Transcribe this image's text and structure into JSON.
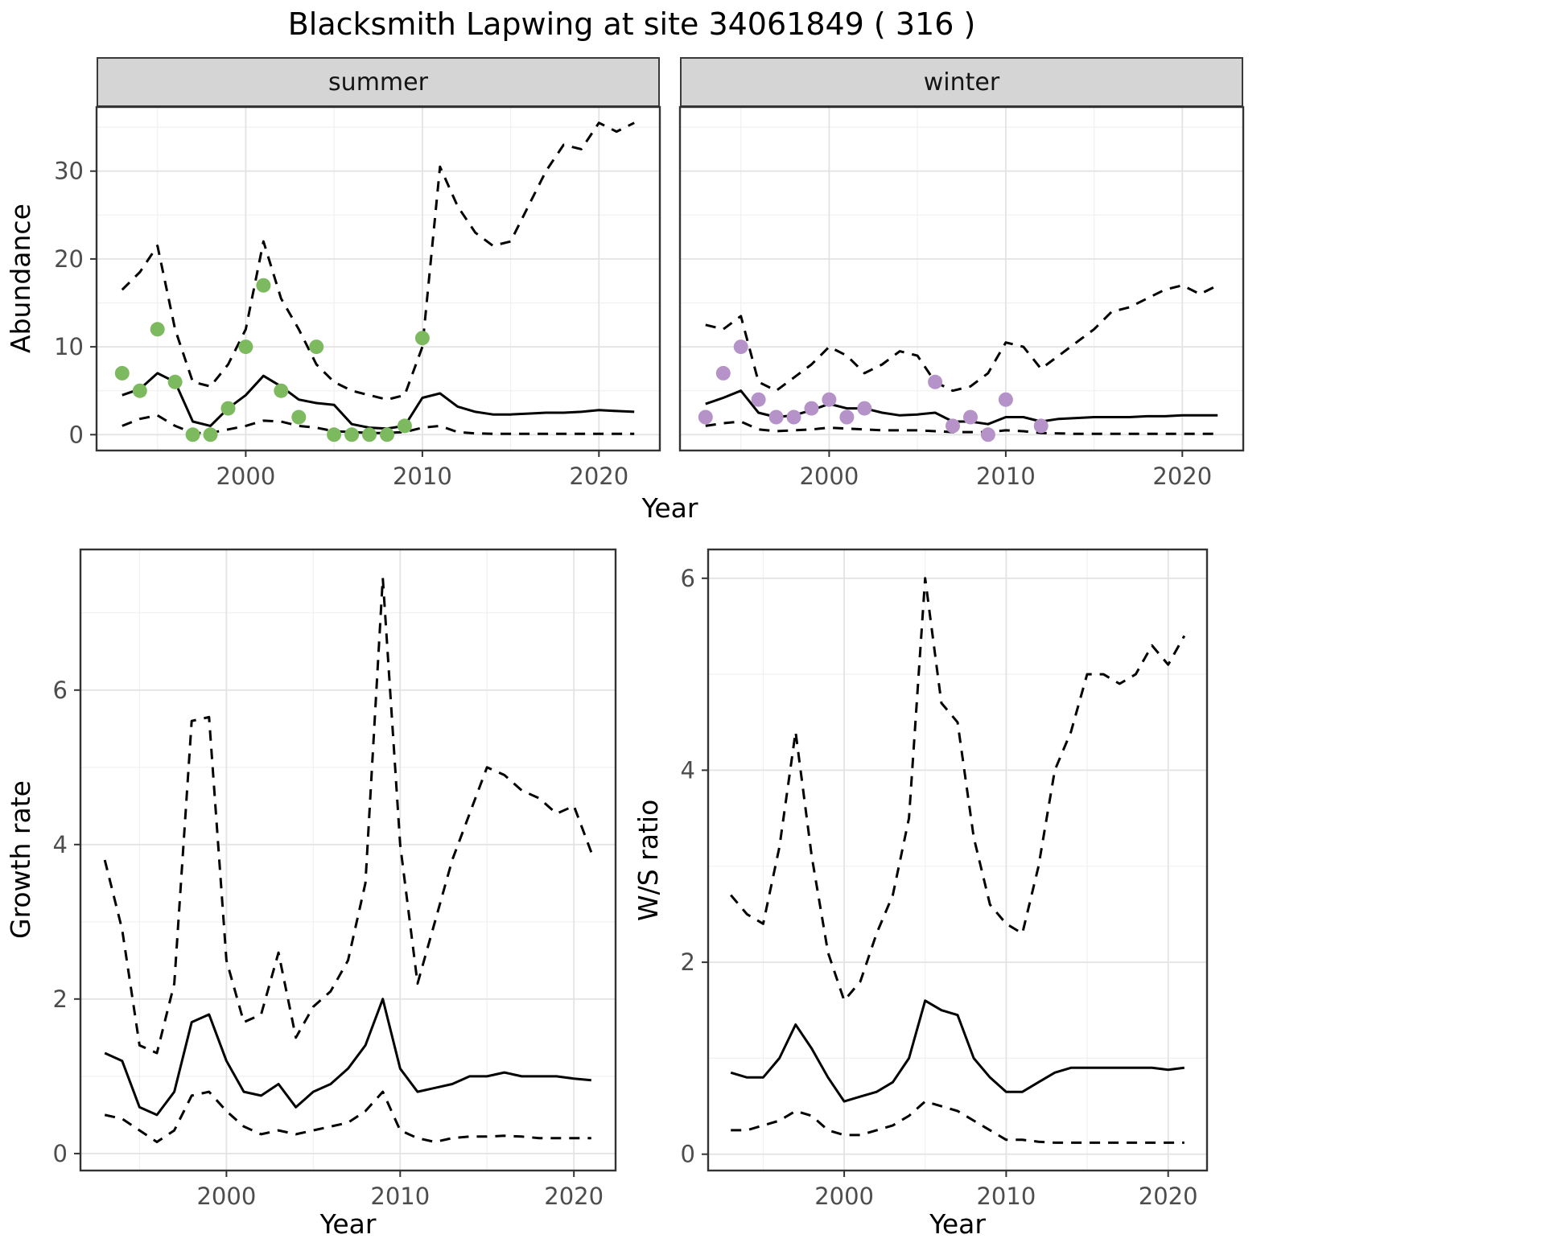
{
  "title": "Blacksmith Lapwing at site 34061849 ( 316 )",
  "axes": {
    "abundance_label": "Abundance",
    "year_label": "Year",
    "growth_label": "Growth rate",
    "ratio_label": "W/S ratio"
  },
  "facets": {
    "summer": "summer",
    "winter": "winter"
  },
  "colors": {
    "summer_points": "#7db95f",
    "winter_points": "#b592c8",
    "line": "#000000",
    "grid_major": "#e3e3e3",
    "grid_minor": "#f0f0f0",
    "strip_bg": "#d5d5d5",
    "panel_border": "#333333",
    "tick_text": "#4d4d4d"
  },
  "chart_data": [
    {
      "id": "abundance-summer",
      "type": "line",
      "facet": "summer",
      "xlabel": "Year",
      "ylabel": "Abundance",
      "xlim": [
        1991.55,
        2023.45
      ],
      "ylim": [
        -1.8,
        37.3
      ],
      "xticks": [
        2000,
        2010,
        2020
      ],
      "yticks": [
        0,
        10,
        20,
        30
      ],
      "xminor": [
        1995,
        2005,
        2015
      ],
      "yminor": [
        5,
        15,
        25,
        35
      ],
      "x": [
        1993,
        1994,
        1995,
        1996,
        1997,
        1998,
        1999,
        2000,
        2001,
        2002,
        2003,
        2004,
        2005,
        2006,
        2007,
        2008,
        2009,
        2010,
        2011,
        2012,
        2013,
        2014,
        2015,
        2016,
        2017,
        2018,
        2019,
        2020,
        2021,
        2022
      ],
      "series": [
        {
          "name": "mean",
          "style": "solid",
          "values": [
            4.5,
            5.2,
            7.0,
            6.0,
            1.5,
            1.0,
            3.0,
            4.5,
            6.7,
            5.5,
            4.0,
            3.6,
            3.4,
            1.2,
            0.8,
            0.7,
            1.0,
            4.2,
            4.7,
            3.2,
            2.6,
            2.3,
            2.3,
            2.4,
            2.5,
            2.5,
            2.6,
            2.8,
            2.7,
            2.6
          ]
        },
        {
          "name": "upper-ci",
          "style": "dashed",
          "values": [
            16.5,
            18.5,
            21.5,
            12,
            6,
            5.5,
            8,
            12,
            22,
            15.5,
            12,
            8,
            6,
            5,
            4.5,
            4,
            4.5,
            10,
            30.5,
            26,
            23,
            21.5,
            22,
            26,
            30,
            33,
            32.5,
            35.5,
            34.5,
            35.5
          ]
        },
        {
          "name": "lower-ci",
          "style": "dashed",
          "values": [
            1.0,
            1.8,
            2.2,
            1.0,
            0.2,
            0.2,
            0.6,
            1.0,
            1.6,
            1.5,
            1.0,
            0.8,
            0.4,
            0.3,
            0.2,
            0.2,
            0.3,
            0.8,
            1.0,
            0.3,
            0.15,
            0.1,
            0.1,
            0.1,
            0.1,
            0.1,
            0.1,
            0.1,
            0.1,
            0.1
          ]
        }
      ],
      "points": {
        "name": "observed-counts-summer",
        "color": "#7db95f",
        "x": [
          1993,
          1994,
          1995,
          1996,
          1997,
          1998,
          1999,
          2000,
          2001,
          2002,
          2003,
          2004,
          2005,
          2006,
          2007,
          2008,
          2009,
          2010
        ],
        "y": [
          7,
          5,
          12,
          6,
          0,
          0,
          3,
          10,
          17,
          5,
          2,
          10,
          0,
          0,
          0,
          0,
          1,
          11
        ]
      }
    },
    {
      "id": "abundance-winter",
      "type": "line",
      "facet": "winter",
      "xlabel": "Year",
      "ylabel": "Abundance",
      "xlim": [
        1991.55,
        2023.45
      ],
      "ylim": [
        -1.8,
        37.3
      ],
      "xticks": [
        2000,
        2010,
        2020
      ],
      "yticks": [
        0,
        10,
        20,
        30
      ],
      "xminor": [
        1995,
        2005,
        2015
      ],
      "yminor": [
        5,
        15,
        25,
        35
      ],
      "x": [
        1993,
        1994,
        1995,
        1996,
        1997,
        1998,
        1999,
        2000,
        2001,
        2002,
        2003,
        2004,
        2005,
        2006,
        2007,
        2008,
        2009,
        2010,
        2011,
        2012,
        2013,
        2014,
        2015,
        2016,
        2017,
        2018,
        2019,
        2020,
        2021,
        2022
      ],
      "series": [
        {
          "name": "mean",
          "style": "solid",
          "values": [
            3.5,
            4.2,
            5.0,
            2.5,
            2.0,
            2.2,
            2.8,
            3.5,
            3.0,
            3.0,
            2.5,
            2.2,
            2.3,
            2.5,
            1.5,
            1.5,
            1.2,
            2.0,
            2.0,
            1.5,
            1.8,
            1.9,
            2.0,
            2.0,
            2.0,
            2.1,
            2.1,
            2.2,
            2.2,
            2.2
          ]
        },
        {
          "name": "upper-ci",
          "style": "dashed",
          "values": [
            12.5,
            12.0,
            13.5,
            6.0,
            5.0,
            6.5,
            8.0,
            10.0,
            9.0,
            7.0,
            8.0,
            9.5,
            9.0,
            6.0,
            5.0,
            5.5,
            7.0,
            10.5,
            10.0,
            7.5,
            9.0,
            10.5,
            12.0,
            14.0,
            14.5,
            15.5,
            16.5,
            17.0,
            16.0,
            17.0
          ]
        },
        {
          "name": "lower-ci",
          "style": "dashed",
          "values": [
            1.0,
            1.3,
            1.5,
            0.6,
            0.4,
            0.5,
            0.6,
            0.8,
            0.7,
            0.6,
            0.5,
            0.5,
            0.5,
            0.4,
            0.3,
            0.3,
            0.3,
            0.5,
            0.4,
            0.2,
            0.15,
            0.1,
            0.1,
            0.1,
            0.1,
            0.1,
            0.1,
            0.1,
            0.1,
            0.1
          ]
        }
      ],
      "points": {
        "name": "observed-counts-winter",
        "color": "#b592c8",
        "x": [
          1993,
          1994,
          1995,
          1996,
          1997,
          1998,
          1999,
          2000,
          2001,
          2002,
          2006,
          2007,
          2008,
          2009,
          2010,
          2012
        ],
        "y": [
          2,
          7,
          10,
          4,
          2,
          2,
          3,
          4,
          2,
          3,
          6,
          1,
          2,
          0,
          4,
          1
        ]
      }
    },
    {
      "id": "growth-rate",
      "type": "line",
      "xlabel": "Year",
      "ylabel": "Growth rate",
      "xlim": [
        1991.6,
        2022.4
      ],
      "ylim": [
        -0.22,
        7.82
      ],
      "xticks": [
        2000,
        2010,
        2020
      ],
      "yticks": [
        0,
        2,
        4,
        6
      ],
      "xminor": [
        1995,
        2005,
        2015
      ],
      "yminor": [
        1,
        3,
        5,
        7
      ],
      "x": [
        1993,
        1994,
        1995,
        1996,
        1997,
        1998,
        1999,
        2000,
        2001,
        2002,
        2003,
        2004,
        2005,
        2006,
        2007,
        2008,
        2009,
        2010,
        2011,
        2012,
        2013,
        2014,
        2015,
        2016,
        2017,
        2018,
        2019,
        2020,
        2021
      ],
      "series": [
        {
          "name": "mean",
          "style": "solid",
          "values": [
            1.3,
            1.2,
            0.6,
            0.5,
            0.8,
            1.7,
            1.8,
            1.2,
            0.8,
            0.75,
            0.9,
            0.6,
            0.8,
            0.9,
            1.1,
            1.4,
            2.0,
            1.1,
            0.8,
            0.85,
            0.9,
            1.0,
            1.0,
            1.05,
            1.0,
            1.0,
            1.0,
            0.97,
            0.95
          ]
        },
        {
          "name": "upper-ci",
          "style": "dashed",
          "values": [
            3.8,
            2.9,
            1.4,
            1.3,
            2.2,
            5.6,
            5.65,
            2.5,
            1.7,
            1.8,
            2.6,
            1.5,
            1.9,
            2.1,
            2.5,
            3.5,
            7.45,
            4.0,
            2.2,
            3.0,
            3.8,
            4.4,
            5.0,
            4.9,
            4.7,
            4.6,
            4.4,
            4.5,
            3.9
          ]
        },
        {
          "name": "lower-ci",
          "style": "dashed",
          "values": [
            0.5,
            0.45,
            0.3,
            0.15,
            0.3,
            0.75,
            0.8,
            0.55,
            0.35,
            0.25,
            0.3,
            0.25,
            0.3,
            0.35,
            0.4,
            0.55,
            0.8,
            0.3,
            0.2,
            0.15,
            0.2,
            0.22,
            0.22,
            0.23,
            0.22,
            0.2,
            0.2,
            0.2,
            0.2
          ]
        }
      ]
    },
    {
      "id": "ws-ratio",
      "type": "line",
      "xlabel": "Year",
      "ylabel": "W/S ratio",
      "xlim": [
        1991.6,
        2022.4
      ],
      "ylim": [
        -0.17,
        6.3
      ],
      "xticks": [
        2000,
        2010,
        2020
      ],
      "yticks": [
        0,
        2,
        4,
        6
      ],
      "xminor": [
        1995,
        2005,
        2015
      ],
      "yminor": [
        1,
        3,
        5
      ],
      "x": [
        1993,
        1994,
        1995,
        1996,
        1997,
        1998,
        1999,
        2000,
        2001,
        2002,
        2003,
        2004,
        2005,
        2006,
        2007,
        2008,
        2009,
        2010,
        2011,
        2012,
        2013,
        2014,
        2015,
        2016,
        2017,
        2018,
        2019,
        2020,
        2021
      ],
      "series": [
        {
          "name": "mean",
          "style": "solid",
          "values": [
            0.85,
            0.8,
            0.8,
            1.0,
            1.35,
            1.1,
            0.8,
            0.55,
            0.6,
            0.65,
            0.75,
            1.0,
            1.6,
            1.5,
            1.45,
            1.0,
            0.8,
            0.65,
            0.65,
            0.75,
            0.85,
            0.9,
            0.9,
            0.9,
            0.9,
            0.9,
            0.9,
            0.88,
            0.9
          ]
        },
        {
          "name": "upper-ci",
          "style": "dashed",
          "values": [
            2.7,
            2.5,
            2.4,
            3.2,
            4.4,
            3.1,
            2.1,
            1.6,
            1.8,
            2.3,
            2.7,
            3.5,
            6.0,
            4.7,
            4.5,
            3.3,
            2.6,
            2.4,
            2.3,
            3.0,
            4.0,
            4.4,
            5.0,
            5.0,
            4.9,
            5.0,
            5.3,
            5.1,
            5.4
          ]
        },
        {
          "name": "lower-ci",
          "style": "dashed",
          "values": [
            0.25,
            0.25,
            0.3,
            0.35,
            0.45,
            0.4,
            0.25,
            0.2,
            0.2,
            0.25,
            0.3,
            0.4,
            0.55,
            0.5,
            0.45,
            0.35,
            0.25,
            0.15,
            0.15,
            0.13,
            0.12,
            0.12,
            0.12,
            0.12,
            0.12,
            0.12,
            0.12,
            0.12,
            0.12
          ]
        }
      ]
    }
  ]
}
